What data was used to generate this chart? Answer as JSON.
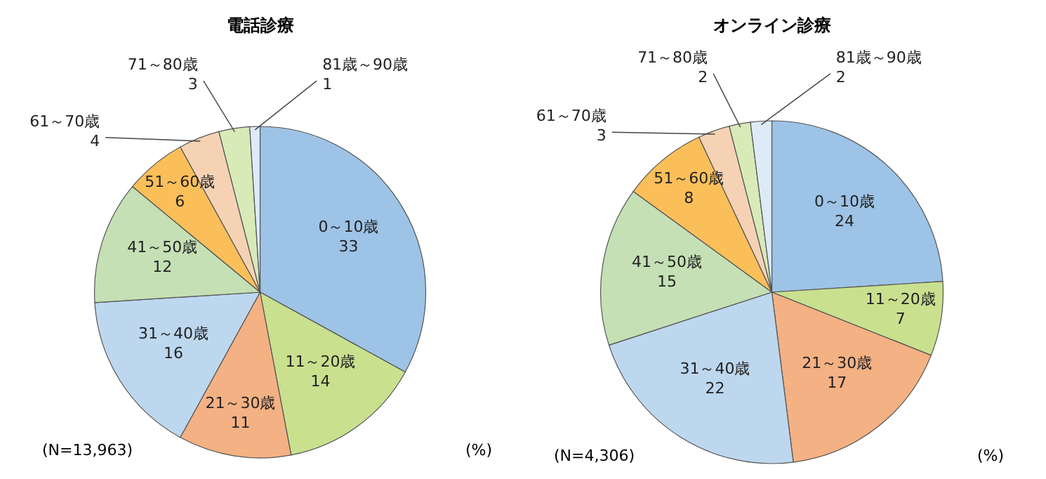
{
  "chart_data": [
    {
      "type": "pie",
      "title": "電話診療",
      "categories": [
        "0～10歳",
        "11～20歳",
        "21～30歳",
        "31～40歳",
        "41～50歳",
        "51～60歳",
        "61～70歳",
        "71～80歳",
        "81歳～90歳"
      ],
      "values": [
        33,
        14,
        11,
        16,
        12,
        6,
        4,
        3,
        1
      ],
      "colors": [
        "#9dc3e6",
        "#c9e08f",
        "#f4b183",
        "#bdd7ee",
        "#c5e0b4",
        "#fbbf5a",
        "#f6d2b4",
        "#d8eab8",
        "#ddebf7"
      ],
      "data_labels": true,
      "annotations": [
        "(N=13,963)",
        "(%)"
      ]
    },
    {
      "type": "pie",
      "title": "オンライン診療",
      "categories": [
        "0～10歳",
        "11～20歳",
        "21～30歳",
        "31～40歳",
        "41～50歳",
        "51～60歳",
        "61～70歳",
        "71～80歳",
        "81歳～90歳"
      ],
      "values": [
        24,
        7,
        17,
        22,
        15,
        8,
        3,
        2,
        2
      ],
      "colors": [
        "#9dc3e6",
        "#c9e08f",
        "#f4b183",
        "#bdd7ee",
        "#c5e0b4",
        "#fbbf5a",
        "#f6d2b4",
        "#d8eab8",
        "#ddebf7"
      ],
      "data_labels": true,
      "annotations": [
        "(N=4,306)",
        "(%)"
      ]
    }
  ]
}
